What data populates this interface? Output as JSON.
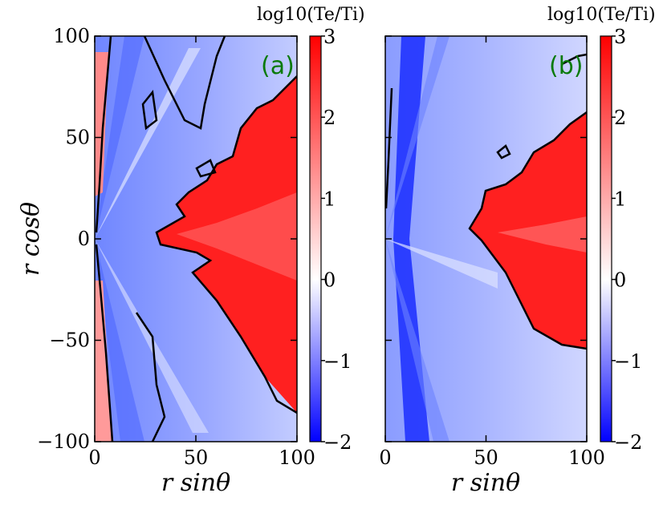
{
  "chart_data": [
    {
      "type": "heatmap",
      "panel_label": "(a)",
      "xlabel": "r sinθ",
      "ylabel": "r cosθ",
      "xlim": [
        0,
        100
      ],
      "ylim": [
        -100,
        100
      ],
      "xticks": [
        "0",
        "50",
        "100"
      ],
      "yticks": [
        "100",
        "50",
        "0",
        "−50",
        "−100"
      ],
      "colorbar": {
        "title": "log10(Te/Ti)",
        "range": [
          -2,
          3
        ],
        "ticks": [
          "3",
          "2",
          "1",
          "0",
          "−1",
          "−2"
        ],
        "colormap": "bwr"
      },
      "features": "red (Te>Ti) wedge around the equator for r sinθ ≳ 40; blue (Te<Ti) polar regions; black contour at log10(Te/Ti)=1"
    },
    {
      "type": "heatmap",
      "panel_label": "(b)",
      "xlabel": "r sinθ",
      "xlim": [
        0,
        100
      ],
      "ylim": [
        -100,
        100
      ],
      "xticks": [
        "0",
        "50",
        "100"
      ],
      "colorbar": {
        "title": "log10(Te/Ti)",
        "range": [
          -2,
          3
        ],
        "ticks": [
          "3",
          "2",
          "1",
          "0",
          "−1",
          "−2"
        ],
        "colormap": "bwr"
      },
      "features": "red equatorial wedge for r sinθ ≳ 55; deep blue jet near r sinθ ≈ 15; black contour at log10(Te/Ti)=1"
    }
  ],
  "colors": {
    "red": "#ff0000",
    "blue": "#0000ff",
    "white": "#ffffff",
    "contour": "#000000",
    "label_green": "#0a7a0a"
  }
}
